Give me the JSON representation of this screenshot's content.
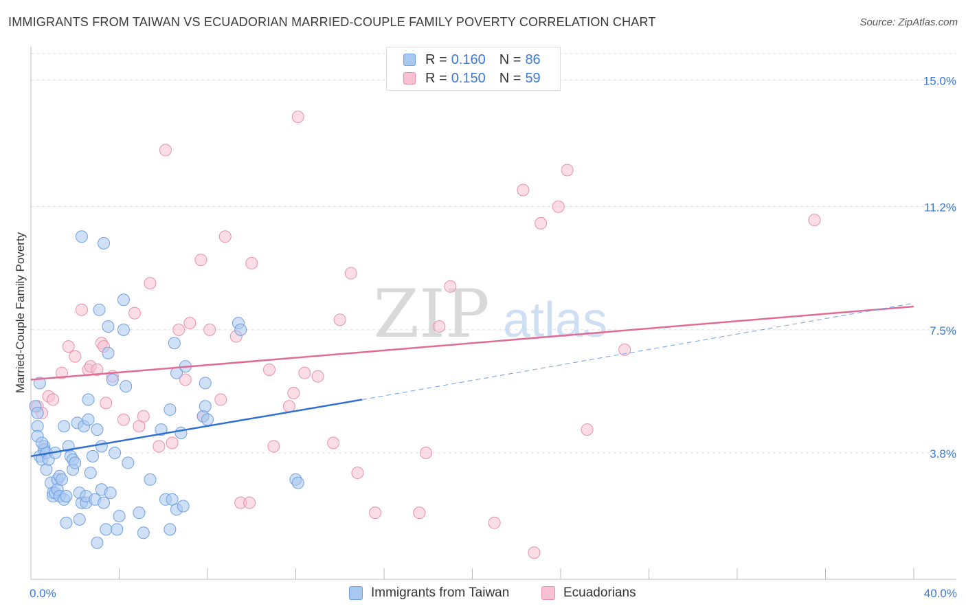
{
  "header": {
    "title": "IMMIGRANTS FROM TAIWAN VS ECUADORIAN MARRIED-COUPLE FAMILY POVERTY CORRELATION CHART",
    "source": "Source: ZipAtlas.com"
  },
  "watermark": {
    "zip": "ZIP",
    "atlas": "atlas"
  },
  "legend": {
    "rows": [
      {
        "r_label": "R =",
        "r_value": "0.160",
        "n_label": "N =",
        "n_value": "86",
        "color": "#a9c8f0",
        "border": "#6f9fe0"
      },
      {
        "r_label": "R =",
        "r_value": "0.150",
        "n_label": "N =",
        "n_value": "59",
        "color": "#f7c1d2",
        "border": "#e88fae"
      }
    ]
  },
  "bottom_legend": {
    "taiwan": "Immigrants from Taiwan",
    "ecuadorians": "Ecuadorians"
  },
  "chart_data": {
    "type": "scatter",
    "title": "IMMIGRANTS FROM TAIWAN VS ECUADORIAN MARRIED-COUPLE FAMILY POVERTY CORRELATION CHART",
    "xlabel": "",
    "ylabel": "Married-Couple Family Poverty",
    "xlim": [
      0,
      40
    ],
    "ylim": [
      0,
      15.8
    ],
    "x_tick_labels": [
      "0.0%",
      "40.0%"
    ],
    "y_ticks": [
      3.8,
      7.5,
      11.2,
      15.0
    ],
    "y_tick_labels": [
      "3.8%",
      "7.5%",
      "11.2%",
      "15.0%"
    ],
    "grid": true,
    "series": [
      {
        "name": "Immigrants from Taiwan",
        "color": "#a9c8f0",
        "stroke": "#6f9fe0",
        "line_color": "#2f6fd0",
        "R": 0.16,
        "N": 86,
        "trend": {
          "x": [
            0,
            15
          ],
          "y": [
            3.7,
            5.4
          ]
        },
        "trend_ext": {
          "x": [
            15,
            40
          ],
          "y": [
            5.4,
            8.3
          ]
        },
        "points": [
          [
            0.2,
            5.2
          ],
          [
            0.3,
            4.6
          ],
          [
            0.3,
            5.0
          ],
          [
            0.3,
            4.3
          ],
          [
            0.4,
            5.9
          ],
          [
            0.4,
            3.7
          ],
          [
            0.5,
            3.6
          ],
          [
            0.6,
            4.0
          ],
          [
            0.6,
            3.9
          ],
          [
            0.7,
            3.3
          ],
          [
            0.7,
            3.8
          ],
          [
            0.8,
            3.6
          ],
          [
            0.9,
            2.9
          ],
          [
            1.0,
            2.6
          ],
          [
            1.0,
            2.5
          ],
          [
            1.1,
            2.6
          ],
          [
            1.2,
            3.0
          ],
          [
            1.2,
            2.7
          ],
          [
            1.3,
            2.5
          ],
          [
            1.3,
            3.1
          ],
          [
            1.4,
            3.0
          ],
          [
            1.5,
            4.6
          ],
          [
            1.5,
            2.4
          ],
          [
            1.6,
            1.7
          ],
          [
            1.6,
            2.5
          ],
          [
            1.7,
            4.0
          ],
          [
            1.8,
            3.7
          ],
          [
            1.9,
            3.3
          ],
          [
            1.9,
            3.6
          ],
          [
            2.0,
            3.5
          ],
          [
            2.1,
            4.7
          ],
          [
            2.2,
            1.8
          ],
          [
            2.2,
            2.6
          ],
          [
            2.3,
            2.3
          ],
          [
            2.3,
            10.3
          ],
          [
            2.4,
            4.6
          ],
          [
            2.5,
            2.3
          ],
          [
            2.5,
            2.5
          ],
          [
            2.6,
            5.4
          ],
          [
            2.6,
            4.8
          ],
          [
            2.7,
            3.2
          ],
          [
            2.8,
            3.7
          ],
          [
            2.9,
            2.4
          ],
          [
            3.0,
            1.1
          ],
          [
            3.0,
            4.5
          ],
          [
            3.1,
            8.1
          ],
          [
            3.2,
            2.7
          ],
          [
            3.2,
            4.0
          ],
          [
            3.3,
            2.3
          ],
          [
            3.3,
            10.1
          ],
          [
            3.4,
            1.5
          ],
          [
            3.5,
            7.6
          ],
          [
            3.5,
            6.8
          ],
          [
            3.6,
            2.6
          ],
          [
            3.7,
            6.0
          ],
          [
            3.8,
            3.8
          ],
          [
            3.9,
            1.5
          ],
          [
            4.0,
            1.9
          ],
          [
            4.2,
            7.5
          ],
          [
            4.2,
            8.4
          ],
          [
            4.3,
            5.8
          ],
          [
            4.4,
            3.5
          ],
          [
            4.9,
            2.0
          ],
          [
            5.1,
            1.4
          ],
          [
            5.4,
            3.0
          ],
          [
            5.9,
            4.5
          ],
          [
            6.1,
            2.4
          ],
          [
            6.3,
            5.1
          ],
          [
            6.3,
            1.5
          ],
          [
            6.4,
            2.4
          ],
          [
            6.5,
            7.1
          ],
          [
            6.6,
            2.1
          ],
          [
            6.6,
            6.2
          ],
          [
            6.8,
            4.4
          ],
          [
            6.9,
            2.2
          ],
          [
            7.0,
            6.4
          ],
          [
            7.9,
            5.9
          ],
          [
            7.8,
            4.9
          ],
          [
            7.9,
            5.2
          ],
          [
            8.0,
            4.8
          ],
          [
            9.4,
            7.7
          ],
          [
            9.5,
            7.5
          ],
          [
            12.0,
            3.0
          ],
          [
            12.1,
            2.9
          ],
          [
            0.5,
            4.1
          ],
          [
            1.1,
            3.8
          ]
        ]
      },
      {
        "name": "Ecuadorians",
        "color": "#f7c1d2",
        "stroke": "#e88fae",
        "line_color": "#e06b95",
        "R": 0.15,
        "N": 59,
        "trend": {
          "x": [
            0,
            40
          ],
          "y": [
            6.0,
            8.2
          ]
        },
        "points": [
          [
            0.3,
            5.2
          ],
          [
            0.5,
            5.0
          ],
          [
            0.8,
            5.5
          ],
          [
            1.0,
            5.4
          ],
          [
            1.4,
            6.2
          ],
          [
            1.7,
            7.0
          ],
          [
            2.0,
            6.7
          ],
          [
            2.3,
            8.1
          ],
          [
            2.6,
            6.3
          ],
          [
            2.7,
            6.4
          ],
          [
            3.0,
            6.3
          ],
          [
            3.2,
            7.1
          ],
          [
            3.3,
            7.0
          ],
          [
            3.4,
            5.3
          ],
          [
            3.7,
            6.1
          ],
          [
            4.2,
            4.8
          ],
          [
            4.7,
            8.0
          ],
          [
            4.9,
            4.6
          ],
          [
            5.1,
            4.9
          ],
          [
            5.4,
            8.9
          ],
          [
            5.8,
            4.0
          ],
          [
            6.1,
            12.9
          ],
          [
            6.4,
            4.1
          ],
          [
            6.7,
            7.5
          ],
          [
            7.0,
            6.0
          ],
          [
            7.2,
            7.7
          ],
          [
            7.7,
            9.6
          ],
          [
            7.8,
            4.9
          ],
          [
            8.1,
            7.5
          ],
          [
            8.6,
            5.4
          ],
          [
            8.8,
            10.3
          ],
          [
            9.3,
            7.3
          ],
          [
            9.5,
            2.3
          ],
          [
            9.9,
            2.3
          ],
          [
            10.0,
            9.5
          ],
          [
            10.8,
            6.3
          ],
          [
            11.0,
            4.0
          ],
          [
            11.7,
            5.2
          ],
          [
            11.9,
            5.6
          ],
          [
            12.1,
            13.9
          ],
          [
            12.4,
            6.2
          ],
          [
            13.0,
            6.1
          ],
          [
            13.7,
            4.1
          ],
          [
            14.0,
            7.8
          ],
          [
            14.5,
            9.2
          ],
          [
            14.8,
            3.2
          ],
          [
            15.6,
            2.0
          ],
          [
            17.9,
            3.8
          ],
          [
            17.6,
            2.0
          ],
          [
            18.5,
            7.6
          ],
          [
            19.0,
            8.8
          ],
          [
            21.0,
            1.7
          ],
          [
            22.3,
            11.7
          ],
          [
            22.8,
            0.8
          ],
          [
            23.1,
            10.7
          ],
          [
            23.9,
            11.2
          ],
          [
            24.3,
            12.3
          ],
          [
            25.2,
            4.5
          ],
          [
            26.9,
            6.9
          ]
        ],
        "extra_points": [
          [
            35.5,
            10.8
          ]
        ]
      }
    ]
  }
}
